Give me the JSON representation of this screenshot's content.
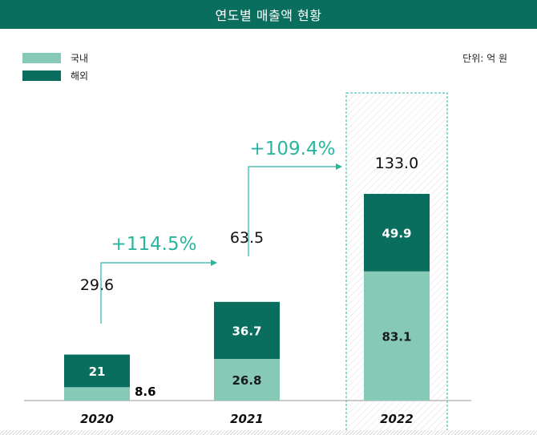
{
  "title": "연도별 매출액 현황",
  "unit": "단위: 억 원",
  "colors": {
    "title_bg": "#0a6e5e",
    "domestic": "#86c9b6",
    "overseas": "#0a6e5e",
    "arrow": "#2ab5a0"
  },
  "chart_data": {
    "type": "bar",
    "stacked": true,
    "categories": [
      "2020",
      "2021",
      "2022"
    ],
    "series": [
      {
        "name": "국내",
        "values": [
          8.6,
          26.8,
          83.1
        ],
        "labels": [
          "8.6",
          "26.8",
          "83.1"
        ],
        "color": "#86c9b6"
      },
      {
        "name": "해외",
        "values": [
          21,
          36.7,
          49.9
        ],
        "labels": [
          "21",
          "36.7",
          "49.9"
        ],
        "color": "#0a6e5e"
      }
    ],
    "totals": [
      29.6,
      63.5,
      133.0
    ],
    "total_labels": [
      "29.6",
      "63.5",
      "133.0"
    ],
    "growth": [
      {
        "from": "2020",
        "to": "2021",
        "label": "+114.5%"
      },
      {
        "from": "2021",
        "to": "2022",
        "label": "+109.4%"
      }
    ],
    "highlight": "2022",
    "legend_position": "top-left",
    "grid": false
  }
}
